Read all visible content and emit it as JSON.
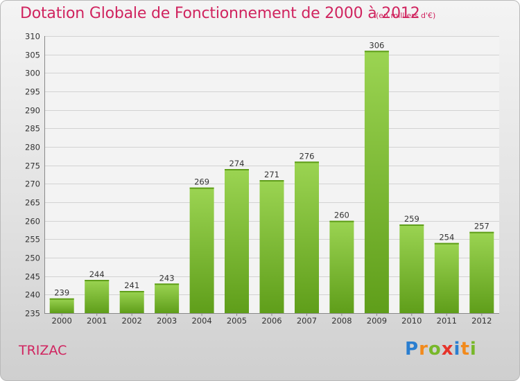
{
  "header": {
    "title": "Dotation Globale de Fonctionnement de 2000 à 2012",
    "subtitle": "(en milliers d'€)"
  },
  "footer": {
    "commune": "TRIZAC",
    "logo_letters": [
      "P",
      "r",
      "o",
      "x",
      "i",
      "t",
      "i"
    ],
    "logo_colors": [
      "#2a7ed0",
      "#f28a1c",
      "#78b82a",
      "#e6332a",
      "#2a7ed0",
      "#f28a1c",
      "#78b82a"
    ]
  },
  "chart_data": {
    "type": "bar",
    "categories": [
      "2000",
      "2001",
      "2002",
      "2003",
      "2004",
      "2005",
      "2006",
      "2007",
      "2008",
      "2009",
      "2010",
      "2011",
      "2012"
    ],
    "values": [
      239,
      244,
      241,
      243,
      269,
      274,
      271,
      276,
      260,
      306,
      259,
      254,
      257
    ],
    "ylim": [
      235,
      310
    ],
    "yticks": [
      235,
      240,
      245,
      250,
      255,
      260,
      265,
      270,
      275,
      280,
      285,
      290,
      295,
      300,
      305,
      310
    ],
    "grid": true,
    "bar_color": "#7cc13a"
  }
}
